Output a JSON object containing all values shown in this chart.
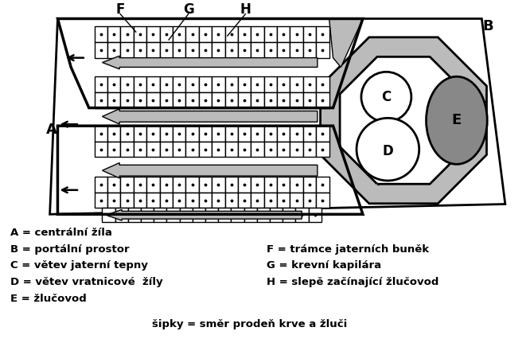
{
  "bg_color": "#ffffff",
  "outline_color": "#000000",
  "gray_color": "#bbbbbb",
  "dark_gray": "#888888",
  "legend_left": [
    "A = centrální žíla",
    "B = portální prostor",
    "C = větev jaterní tepny",
    "D = větev vratnicové  žíly",
    "E = žlučovod"
  ],
  "legend_right": [
    "F = trámce jaterních buněk",
    "G = krevní kapilára",
    "H = slepě začínající žlučovod"
  ],
  "legend_bottom": "šipky = směr prodeň krve a žluči"
}
